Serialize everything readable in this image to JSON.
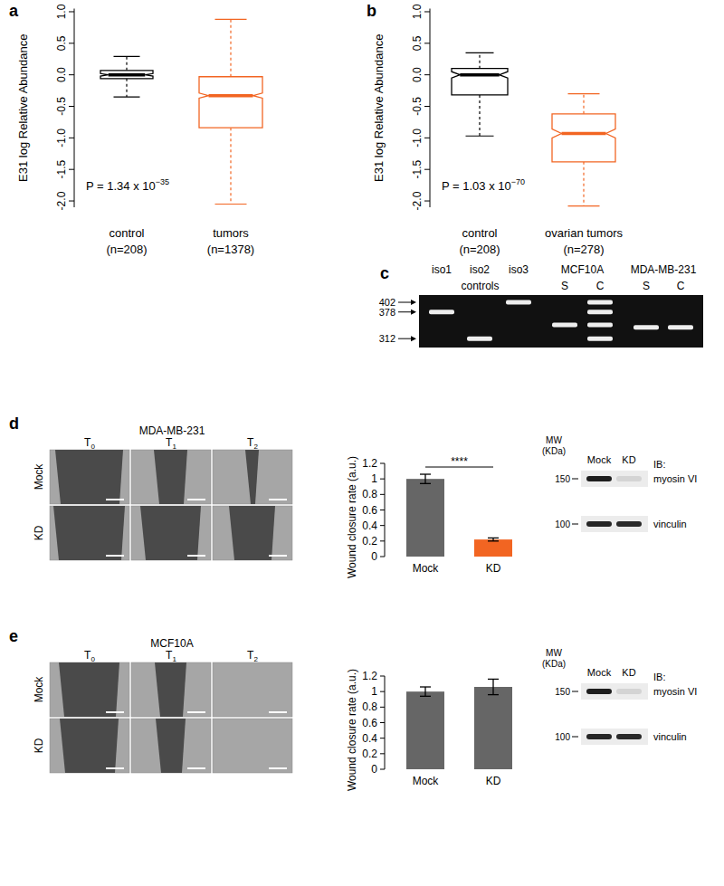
{
  "chart_data": [
    {
      "type": "box",
      "panel": "a",
      "y_label": "E31 log Relative Abundance",
      "categories": [
        "control",
        "tumors"
      ],
      "category_notes": [
        "(n=208)",
        "(n=1378)"
      ],
      "colors": [
        "#000000",
        "#f26522"
      ],
      "boxes": [
        {
          "whisker_low": -0.35,
          "q1": -0.06,
          "median": 0,
          "q3": 0.07,
          "whisker_high": 0.29,
          "notch_low": -0.02,
          "notch_high": 0.02
        },
        {
          "whisker_low": -2.05,
          "q1": -0.84,
          "median": -0.33,
          "q3": -0.03,
          "whisker_high": 0.88,
          "notch_low": -0.37,
          "notch_high": -0.29
        }
      ],
      "annotation": "P = 1.34 x 10",
      "annotation_exponent": "−35",
      "ylim": [
        -2.1,
        1.05
      ],
      "yticks": [
        {
          "value": -2,
          "label": "-2.0"
        },
        -1.5,
        {
          "value": -1,
          "label": "-1.0"
        },
        -0.5,
        {
          "value": 0,
          "label": "0.0"
        },
        0.5,
        {
          "value": 1,
          "label": "1.0"
        }
      ]
    },
    {
      "type": "box",
      "panel": "b",
      "y_label": "E31 log Relative Abundance",
      "categories": [
        "control",
        "ovarian tumors"
      ],
      "category_notes": [
        "(n=208)",
        "(n=278)"
      ],
      "colors": [
        "#000000",
        "#f26522"
      ],
      "boxes": [
        {
          "whisker_low": -0.97,
          "q1": -0.32,
          "median": 0,
          "q3": 0.1,
          "whisker_high": 0.35,
          "notch_low": -0.05,
          "notch_high": 0.05
        },
        {
          "whisker_low": -2.08,
          "q1": -1.38,
          "median": -0.93,
          "q3": -0.62,
          "whisker_high": -0.3,
          "notch_low": -1.0,
          "notch_high": -0.86
        }
      ],
      "annotation": "P = 1.03 x 10",
      "annotation_exponent": "−70",
      "ylim": [
        -2.1,
        1.05
      ],
      "yticks": [
        {
          "value": -2,
          "label": "-2.0"
        },
        -1.5,
        {
          "value": -1,
          "label": "-1.0"
        },
        -0.5,
        {
          "value": 0,
          "label": "0.0"
        },
        0.5,
        {
          "value": 1,
          "label": "1.0"
        }
      ]
    },
    {
      "type": "gel",
      "panel": "c",
      "ylim": [
        290,
        420
      ],
      "yticks": [
        312,
        378,
        402
      ],
      "groups": [
        {
          "label": "controls",
          "lanes": [
            {
              "label": "iso1",
              "bands": [
                378
              ]
            },
            {
              "label": "iso2",
              "bands": [
                312
              ]
            },
            {
              "label": "iso3",
              "bands": [
                402
              ]
            }
          ]
        },
        {
          "label": "MCF10A",
          "lanes": [
            {
              "label": "S",
              "bands": [
                346
              ]
            },
            {
              "label": "C",
              "bands": [
                402,
                378,
                346,
                312
              ]
            }
          ]
        },
        {
          "label": "MDA-MB-231",
          "lanes": [
            {
              "label": "S",
              "bands": [
                340
              ]
            },
            {
              "label": "C",
              "bands": [
                340
              ]
            }
          ]
        }
      ]
    },
    {
      "type": "bar",
      "panel": "d",
      "y_label": "Wound closure rate (a.u.)",
      "categories": [
        "Mock",
        "KD"
      ],
      "values": [
        1,
        0.22
      ],
      "errors": [
        0.06,
        0.02
      ],
      "colors": [
        "#666666",
        "#f26522"
      ],
      "ylim": [
        0,
        1.2
      ],
      "yticks": [
        0,
        0.2,
        0.4,
        0.6,
        0.8,
        1,
        1.2
      ],
      "significance": "****",
      "images": {
        "title": "MDA-MB-231",
        "rows": [
          "Mock",
          "KD"
        ],
        "columns": [
          {
            "text": "T",
            "sub": "0"
          },
          {
            "text": "T",
            "sub": "1"
          },
          {
            "text": "T",
            "sub": "2"
          }
        ]
      },
      "blot": {
        "mw_title": "MW",
        "mw_unit": "(KDa)",
        "lanes": [
          "Mock",
          "KD"
        ],
        "markers": [
          150,
          100
        ],
        "probe_prefix": "IB:",
        "probes": [
          "myosin VI",
          "vinculin"
        ]
      }
    },
    {
      "type": "bar",
      "panel": "e",
      "y_label": "Wound closure rate (a.u.)",
      "categories": [
        "Mock",
        "KD"
      ],
      "values": [
        1,
        1.06
      ],
      "errors": [
        0.06,
        0.1
      ],
      "colors": [
        "#666666",
        "#666666"
      ],
      "ylim": [
        0,
        1.2
      ],
      "yticks": [
        0,
        0.2,
        0.4,
        0.6,
        0.8,
        1,
        1.2
      ],
      "images": {
        "title": "MCF10A",
        "rows": [
          "Mock",
          "KD"
        ],
        "columns": [
          {
            "text": "T",
            "sub": "0"
          },
          {
            "text": "T",
            "sub": "1"
          },
          {
            "text": "T",
            "sub": "2"
          }
        ]
      },
      "blot": {
        "mw_title": "MW",
        "mw_unit": "(KDa)",
        "lanes": [
          "Mock",
          "KD"
        ],
        "markers": [
          150,
          100
        ],
        "probe_prefix": "IB:",
        "probes": [
          "myosin VI",
          "vinculin"
        ]
      }
    }
  ]
}
